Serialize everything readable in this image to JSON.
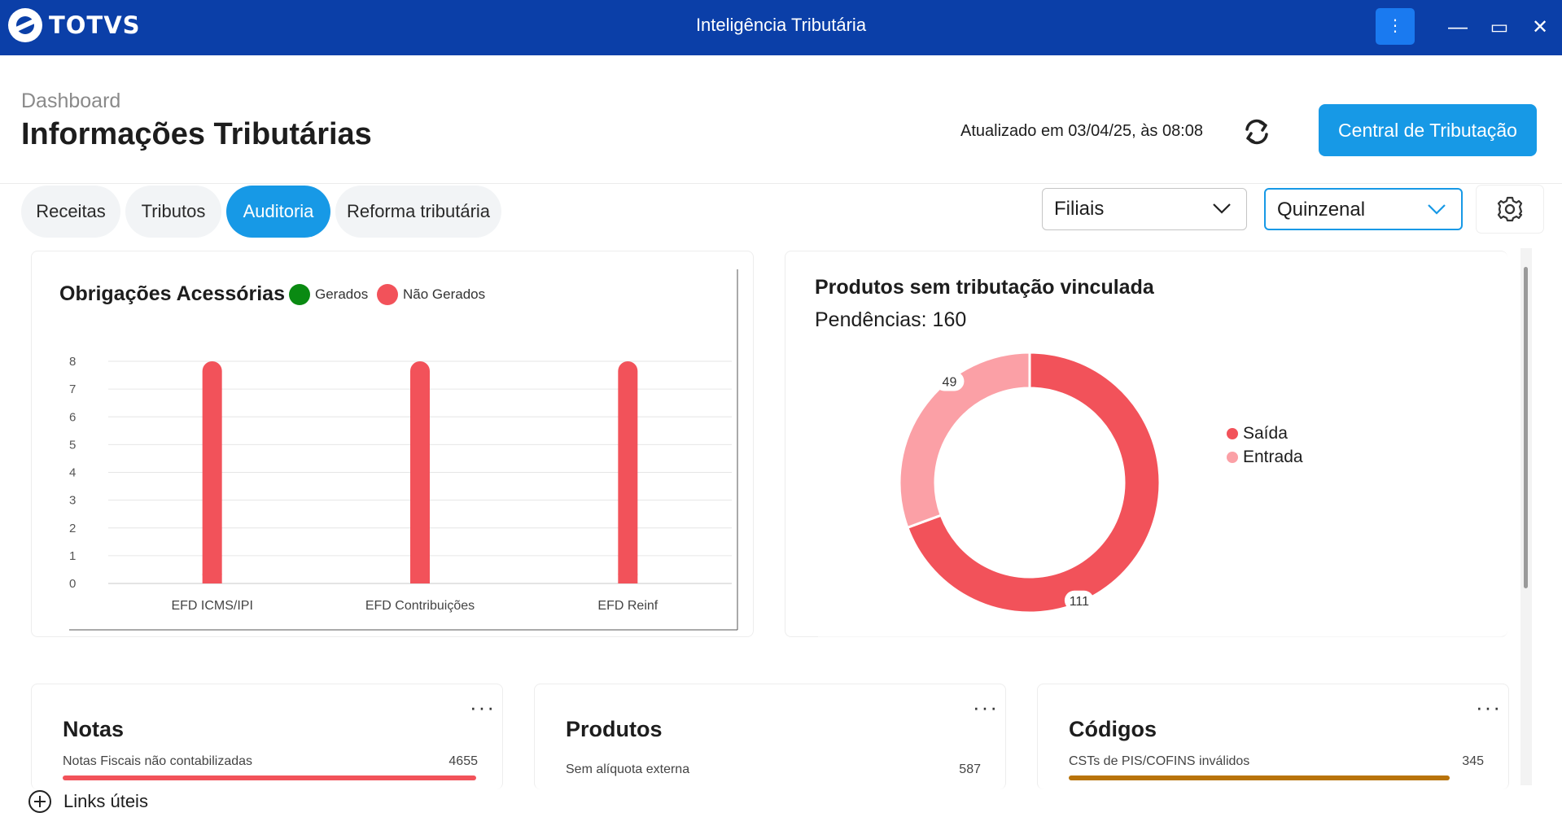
{
  "app": {
    "brand": "TOTVS",
    "window_title": "Inteligência Tributária"
  },
  "header": {
    "breadcrumb": "Dashboard",
    "title": "Informações Tributárias",
    "updated": "Atualizado em 03/04/25, às 08:08",
    "primary_button": "Central de Tributação"
  },
  "tabs": [
    {
      "label": "Receitas",
      "active": false
    },
    {
      "label": "Tributos",
      "active": false
    },
    {
      "label": "Auditoria",
      "active": true
    },
    {
      "label": "Reforma tributária",
      "active": false
    }
  ],
  "filters": {
    "branch": "Filiais",
    "period": "Quinzenal"
  },
  "chart_data": [
    {
      "type": "bar",
      "title": "Obrigações Acessórias",
      "categories": [
        "EFD ICMS/IPI",
        "EFD Contribuições",
        "EFD Reinf"
      ],
      "series": [
        {
          "name": "Gerados",
          "color": "#0a8a12",
          "values": [
            0,
            0,
            0
          ]
        },
        {
          "name": "Não Gerados",
          "color": "#f2525a",
          "values": [
            8,
            8,
            8
          ]
        }
      ],
      "ylim": [
        0,
        8
      ],
      "yticks": [
        "0",
        "1",
        "2",
        "3",
        "4",
        "5",
        "6",
        "7",
        "8"
      ],
      "grid": true,
      "legend": "top"
    },
    {
      "type": "pie",
      "title": "Produtos sem tributação vinculada",
      "subtitle": "Pendências: 160",
      "labels": [
        "Saída",
        "Entrada"
      ],
      "values": [
        111,
        49
      ],
      "data_labels": [
        "111",
        "49"
      ],
      "colors": [
        "#f2525a",
        "#fba0a6"
      ],
      "legend": "right"
    }
  ],
  "cards": [
    {
      "title": "Notas",
      "label": "Notas Fiscais não contabilizadas",
      "value": "4655",
      "bar_color": "#f2525a"
    },
    {
      "title": "Produtos",
      "label": "Sem alíquota externa",
      "value": "587",
      "bar_color": ""
    },
    {
      "title": "Códigos",
      "label": "CSTs de PIS/COFINS inválidos",
      "value": "345",
      "bar_color": "#b8730a"
    }
  ],
  "footer": {
    "links_label": "Links úteis"
  },
  "icons": {
    "menu": "kebab-icon",
    "minimize": "minimize-icon",
    "maximize": "maximize-icon",
    "close": "close-icon",
    "refresh": "refresh-icon",
    "chevron": "chevron-down-icon",
    "settings": "gear-icon",
    "more": "more-icon",
    "add": "plus-circle-icon"
  },
  "window_glyphs": {
    "kebab": "⋮",
    "minimize": "—",
    "maximize": "▭",
    "close": "✕",
    "more": "···"
  }
}
